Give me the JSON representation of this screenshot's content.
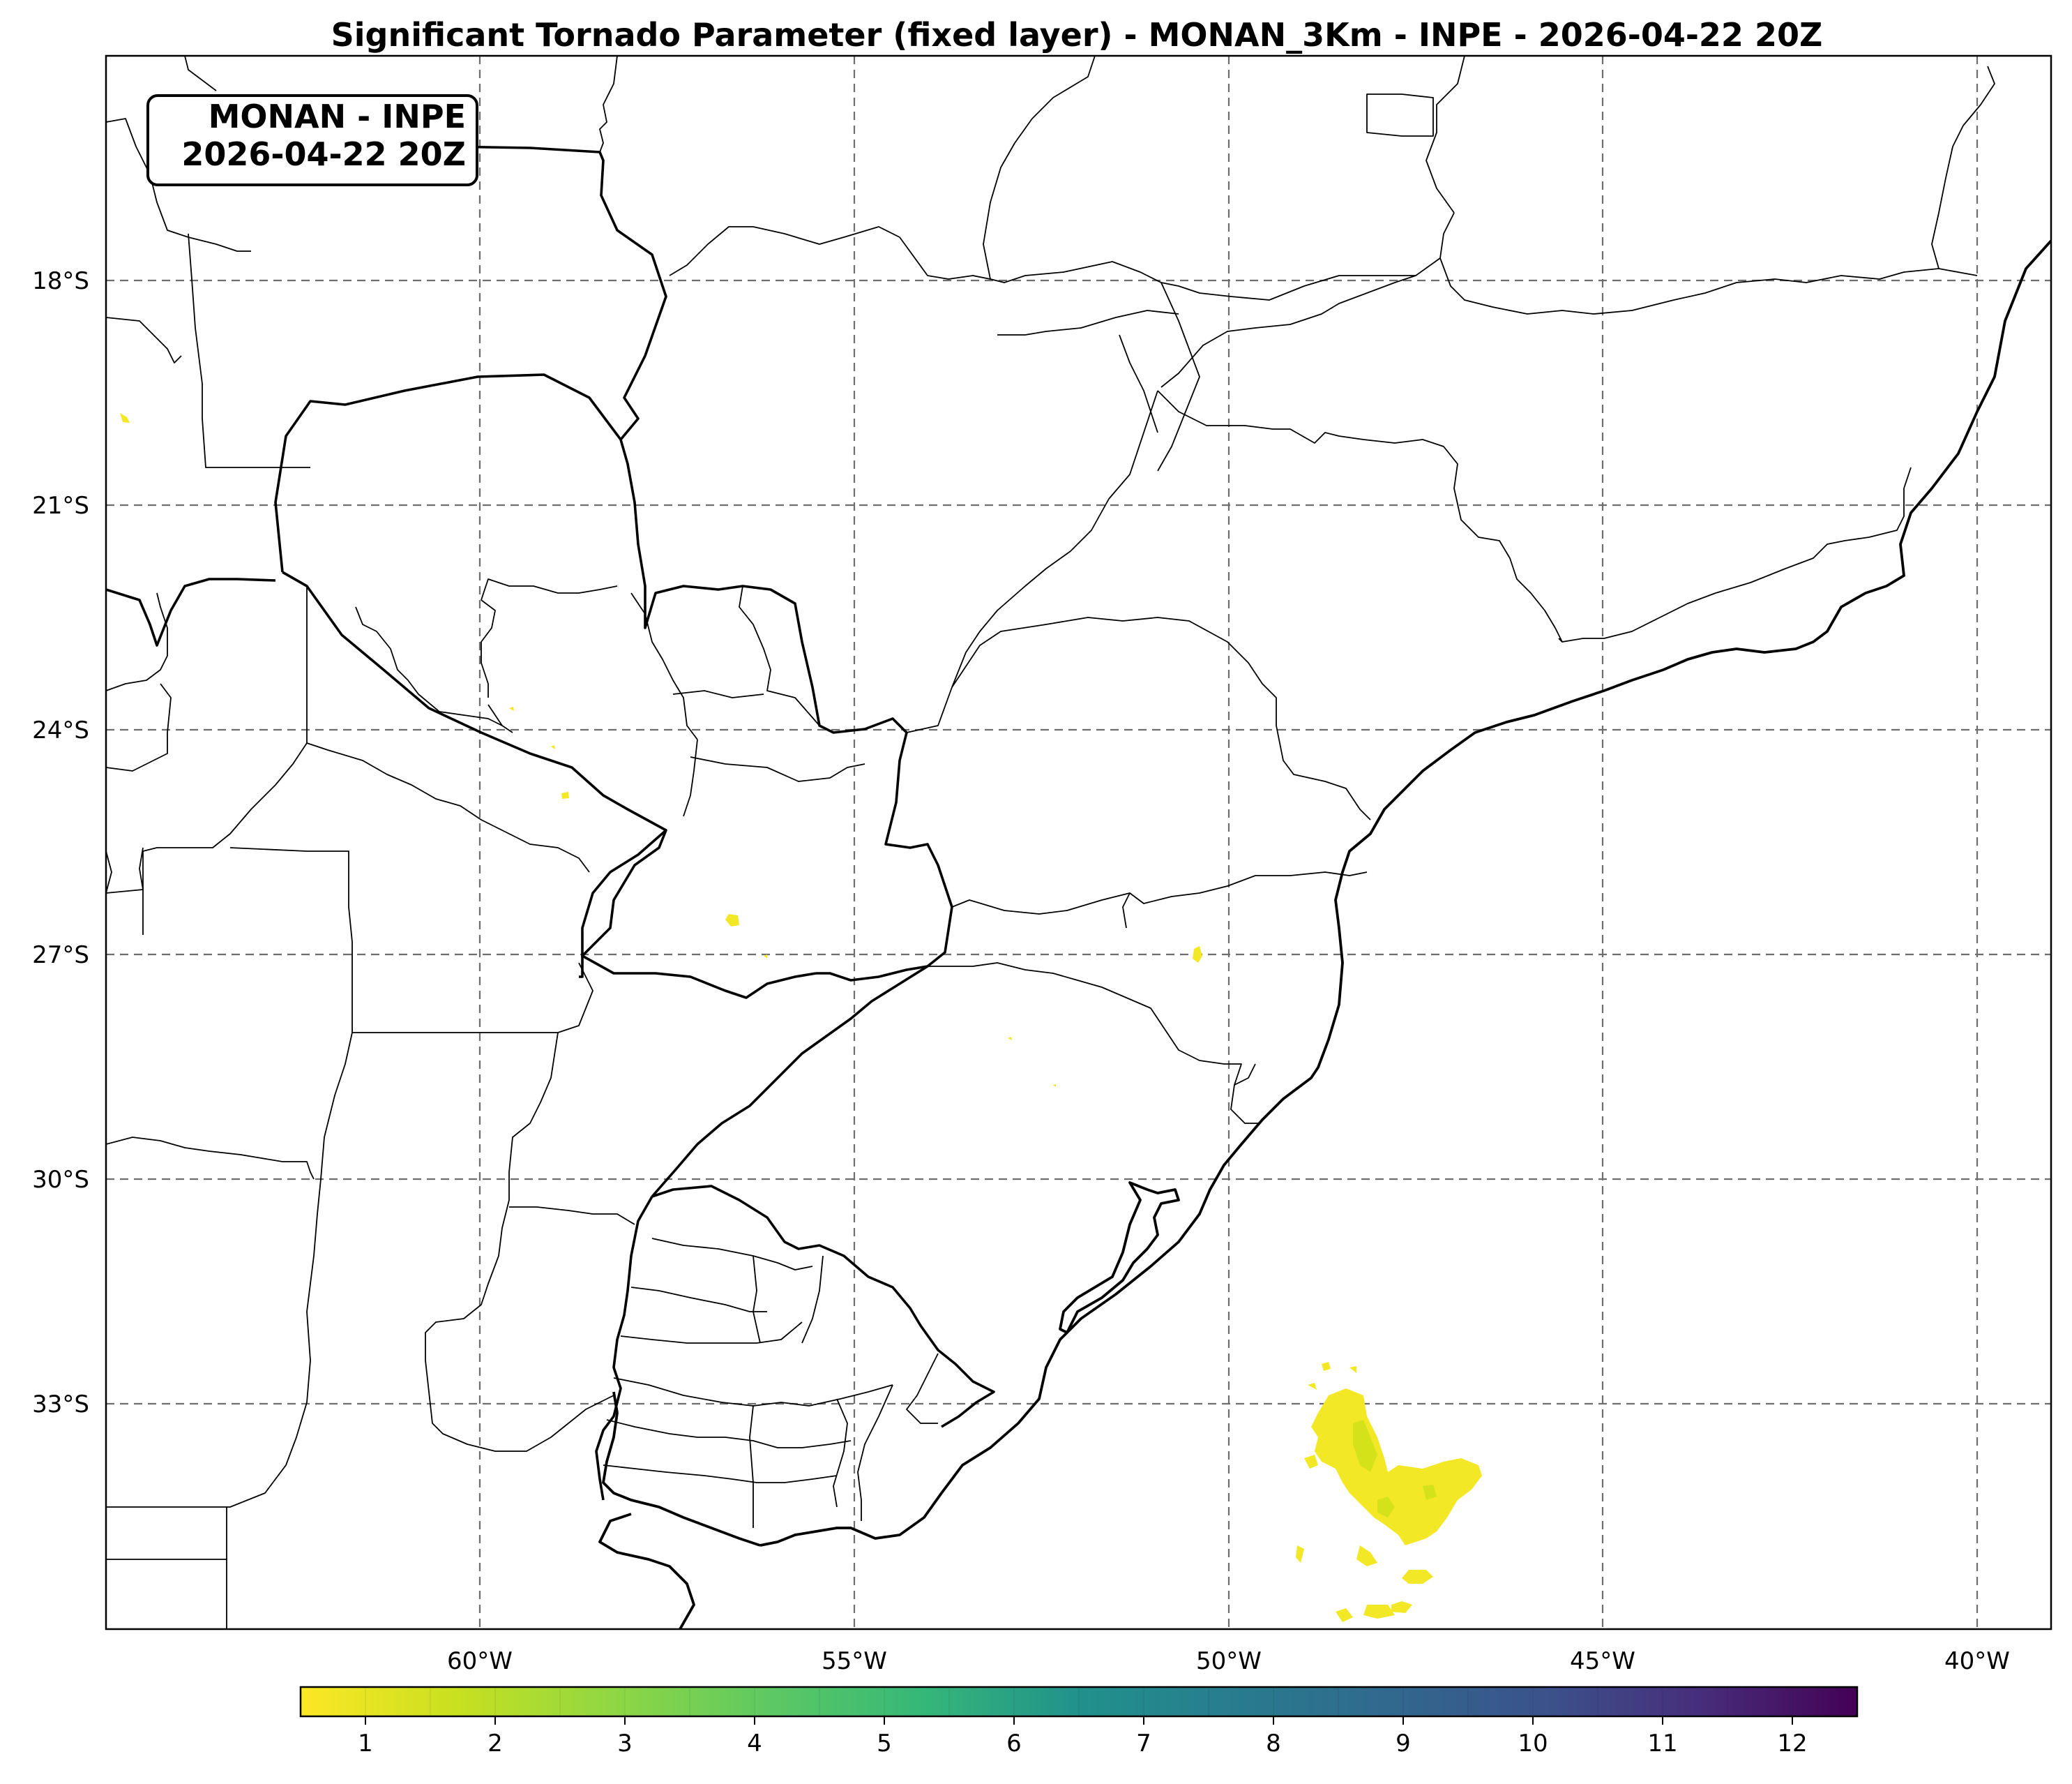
{
  "title": "Significant Tornado Parameter (fixed layer) - MONAN_3Km - INPE - 2026-04-22 20Z",
  "stamp": {
    "line1": "MONAN - INPE",
    "line2": "2026-04-22 20Z"
  },
  "lat_labels": [
    "18°S",
    "21°S",
    "24°S",
    "27°S",
    "30°S",
    "33°S"
  ],
  "lon_labels": [
    "60°W",
    "55°W",
    "50°W",
    "45°W",
    "40°W"
  ],
  "colorbar": {
    "ticks": [
      "1",
      "2",
      "3",
      "4",
      "5",
      "6",
      "7",
      "8",
      "9",
      "10",
      "11",
      "12"
    ],
    "range": [
      0.5,
      12.5
    ],
    "colormap": "viridis_r",
    "color_low": "#fde725",
    "color_mid": "#21918c",
    "color_high": "#440154"
  },
  "colors": {
    "field_yellow": "#f2e825",
    "field_yellow_green": "#d4e21a",
    "grid": "#6e6e6e",
    "border": "#000000"
  },
  "map_extent": {
    "lon_min": -65.0,
    "lon_max": -39.0,
    "lat_min": -36.0,
    "lat_max": -15.0
  }
}
